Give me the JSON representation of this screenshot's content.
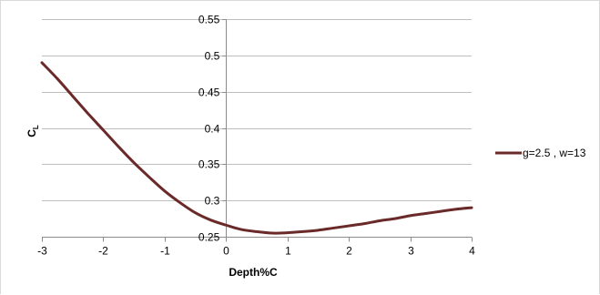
{
  "chart_data": {
    "type": "line",
    "title": "",
    "xlabel": "Depth%C",
    "ylabel_main": "C",
    "ylabel_sub": "L",
    "xlim": [
      -3,
      4
    ],
    "ylim": [
      0.25,
      0.55
    ],
    "x_ticks": [
      -3,
      -2,
      -1,
      0,
      1,
      2,
      3,
      4
    ],
    "x_tick_labels": [
      "-3",
      "-2",
      "-1",
      "0",
      "1",
      "2",
      "3",
      "4"
    ],
    "y_ticks": [
      0.25,
      0.3,
      0.35,
      0.4,
      0.45,
      0.5,
      0.55
    ],
    "y_tick_labels": [
      "0.25",
      "0.3",
      "0.35",
      "0.4",
      "0.45",
      "0.5",
      "0.55"
    ],
    "grid": "horizontal",
    "legend_position": "right",
    "series": [
      {
        "name": "g=2.5 , w=13",
        "color": "#6b2a2a",
        "x": [
          -3,
          -2.75,
          -2.5,
          -2.25,
          -2,
          -1.75,
          -1.5,
          -1.25,
          -1,
          -0.75,
          -0.5,
          -0.25,
          0,
          0.25,
          0.5,
          0.75,
          1,
          1.25,
          1.5,
          1.75,
          2,
          2.25,
          2.5,
          2.75,
          3,
          3.25,
          3.5,
          3.75,
          4
        ],
        "y": [
          0.49,
          0.468,
          0.444,
          0.42,
          0.397,
          0.374,
          0.352,
          0.332,
          0.313,
          0.297,
          0.283,
          0.273,
          0.266,
          0.26,
          0.257,
          0.255,
          0.2555,
          0.257,
          0.259,
          0.262,
          0.265,
          0.268,
          0.272,
          0.275,
          0.279,
          0.282,
          0.285,
          0.288,
          0.29
        ]
      }
    ]
  }
}
